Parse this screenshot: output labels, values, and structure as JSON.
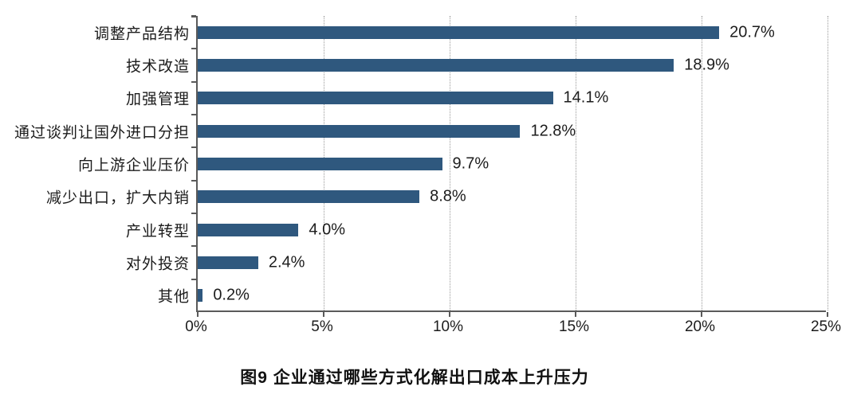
{
  "chart_data": {
    "type": "bar",
    "orientation": "horizontal",
    "title": "图9  企业通过哪些方式化解出口成本上升压力",
    "xlabel": "",
    "ylabel": "",
    "categories": [
      "调整产品结构",
      "技术改造",
      "加强管理",
      "通过谈判让国外进口分担",
      "向上游企业压价",
      "减少出口，扩大内销",
      "产业转型",
      "对外投资",
      "其他"
    ],
    "values": [
      20.7,
      18.9,
      14.1,
      12.8,
      9.7,
      8.8,
      4.0,
      2.4,
      0.2
    ],
    "value_labels": [
      "20.7%",
      "18.9%",
      "14.1%",
      "12.8%",
      "9.7%",
      "8.8%",
      "4.0%",
      "2.4%",
      "0.2%"
    ],
    "xlim": [
      0,
      25
    ],
    "x_tick_values": [
      0,
      5,
      10,
      15,
      20,
      25
    ],
    "x_tick_labels": [
      "0%",
      "5%",
      "10%",
      "15%",
      "20%",
      "25%"
    ],
    "grid": "vertical dotted gridlines at each x tick, drawn behind bars",
    "legend": "none",
    "colors": {
      "bar": "#2F587E",
      "gridline": "#9a9a9a",
      "axis": "#5a5a5a",
      "text": "#1c1c1c",
      "background": "#ffffff"
    }
  }
}
